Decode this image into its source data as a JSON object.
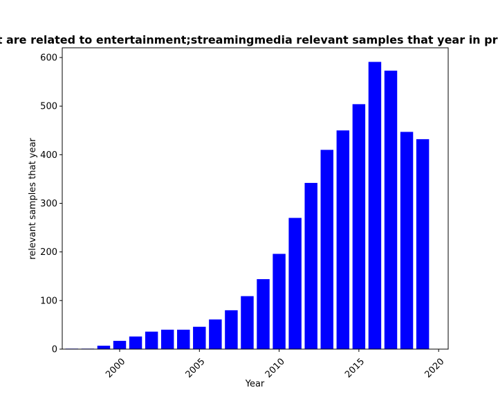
{
  "chart_data": {
    "type": "bar",
    "title": "Papers that are related to entertainment;streamingmedia relevant samples that year in privacy domain",
    "xlabel": "Year",
    "ylabel": "relevant samples that year",
    "x": [
      1997,
      1998,
      1999,
      2000,
      2001,
      2002,
      2003,
      2004,
      2005,
      2006,
      2007,
      2008,
      2009,
      2010,
      2011,
      2012,
      2013,
      2014,
      2015,
      2016,
      2017,
      2018,
      2019
    ],
    "values": [
      1,
      1,
      7,
      17,
      26,
      36,
      40,
      40,
      46,
      61,
      80,
      109,
      144,
      196,
      270,
      342,
      410,
      450,
      504,
      591,
      573,
      447,
      432
    ],
    "xlim": [
      1996.4,
      2020.6
    ],
    "ylim": [
      0,
      620
    ],
    "xticks": [
      2000,
      2005,
      2010,
      2015,
      2020
    ],
    "yticks": [
      0,
      100,
      200,
      300,
      400,
      500,
      600
    ],
    "bar_color": "#0000ff",
    "grid": false,
    "legend": "none"
  }
}
